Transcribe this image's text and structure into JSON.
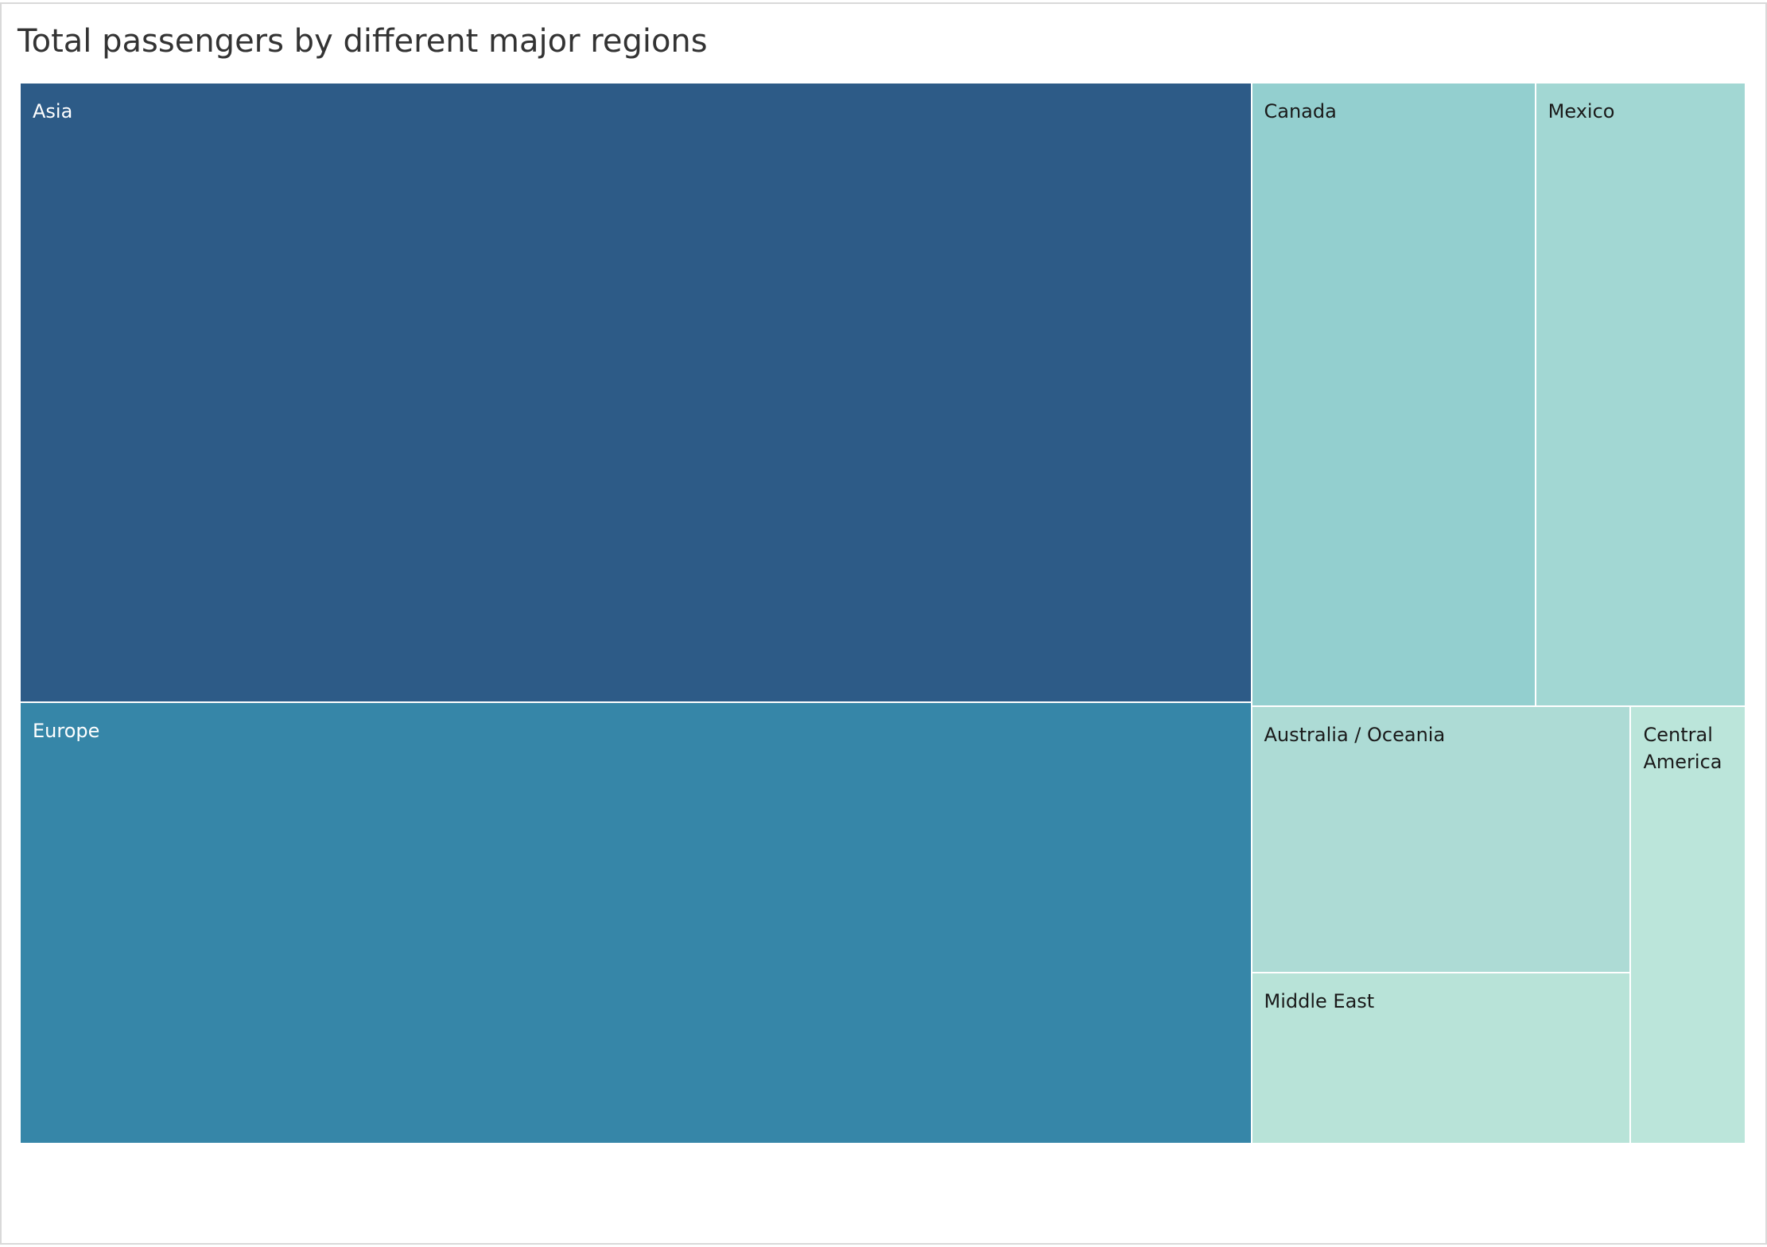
{
  "chart_data": {
    "type": "treemap",
    "title": "Total passengers by different major regions",
    "regions": [
      {
        "name": "Asia",
        "label": "Asia",
        "relative_size": 0.4143,
        "color": "#2d5b87",
        "text_color": "#ffffff"
      },
      {
        "name": "Europe",
        "label": "Europe",
        "relative_size": 0.2953,
        "color": "#3686a8",
        "text_color": "#ffffff"
      },
      {
        "name": "Canada",
        "label": "Canada",
        "relative_size": 0.0962,
        "color": "#93cfcf",
        "text_color": "#1a1a1a"
      },
      {
        "name": "Mexico",
        "label": "Mexico",
        "relative_size": 0.0712,
        "color": "#a2d7d3",
        "text_color": "#1a1a1a"
      },
      {
        "name": "Australia / Oceania",
        "label": "Australia / Oceania",
        "relative_size": 0.0548,
        "color": "#addbd5",
        "text_color": "#1a1a1a"
      },
      {
        "name": "Middle East",
        "label": "Middle East",
        "relative_size": 0.0353,
        "color": "#b8e3d8",
        "text_color": "#1a1a1a"
      },
      {
        "name": "Central America",
        "label": "Central\nAmerica",
        "relative_size": 0.0273,
        "color": "#bbe5da",
        "text_color": "#1a1a1a"
      }
    ]
  }
}
